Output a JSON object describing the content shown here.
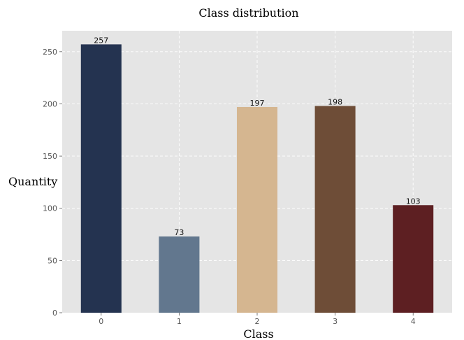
{
  "chart_data": {
    "type": "bar",
    "title": "Class distribution",
    "xlabel": "Class",
    "ylabel": "Quantity",
    "categories": [
      "0",
      "1",
      "2",
      "3",
      "4"
    ],
    "values": [
      257,
      73,
      197,
      198,
      103
    ],
    "data_labels": [
      "257",
      "73",
      "197",
      "198",
      "103"
    ],
    "colors": [
      "#243350",
      "#62778e",
      "#d5b690",
      "#6e4d37",
      "#5d1f22"
    ],
    "ylim": [
      0,
      270
    ],
    "yticks": [
      0,
      50,
      100,
      150,
      200,
      250
    ],
    "ytick_labels": [
      "0",
      "50",
      "100",
      "150",
      "200",
      "250"
    ],
    "grid": true,
    "grid_style": "dashed",
    "legend": "none",
    "background_color": "#e5e5e5",
    "grid_color": "#ffffff"
  }
}
